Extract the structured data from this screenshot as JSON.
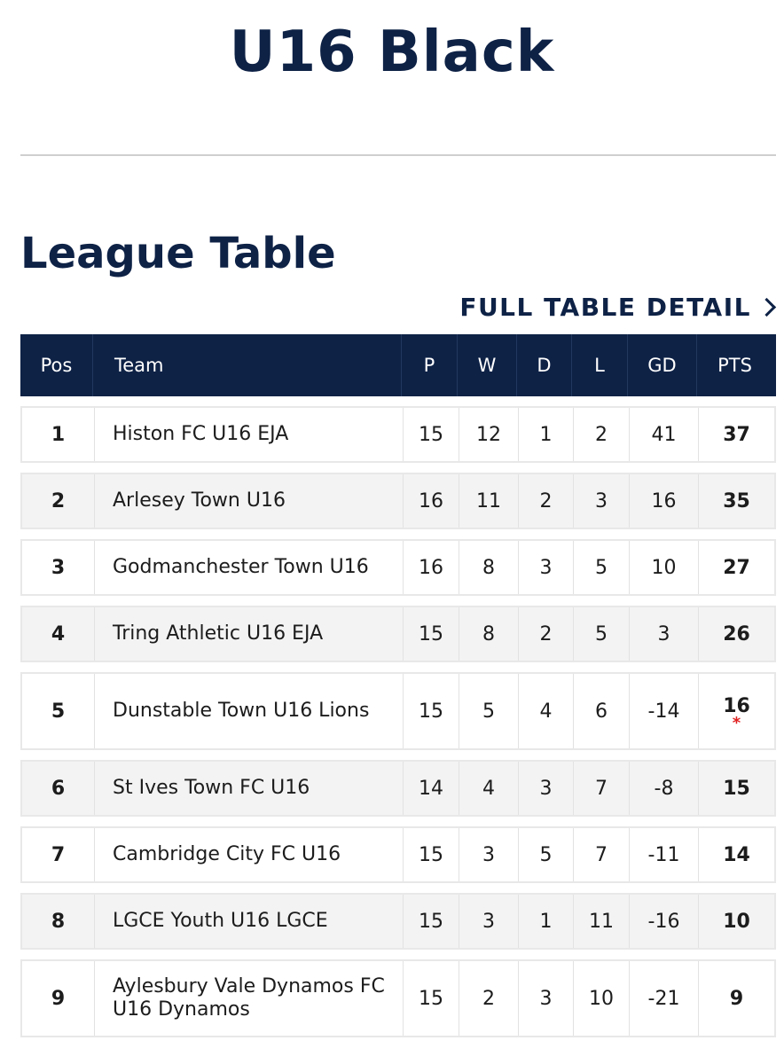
{
  "header": {
    "title": "U16 Black"
  },
  "section": {
    "title": "League Table",
    "link_label": "FULL TABLE DETAIL"
  },
  "table": {
    "columns": [
      "Pos",
      "Team",
      "P",
      "W",
      "D",
      "L",
      "GD",
      "PTS"
    ],
    "rows": [
      {
        "pos": "1",
        "team": "Histon FC U16 EJA",
        "p": "15",
        "w": "12",
        "d": "1",
        "l": "2",
        "gd": "41",
        "pts": "37",
        "note": ""
      },
      {
        "pos": "2",
        "team": "Arlesey Town U16",
        "p": "16",
        "w": "11",
        "d": "2",
        "l": "3",
        "gd": "16",
        "pts": "35",
        "note": ""
      },
      {
        "pos": "3",
        "team": "Godmanchester Town U16",
        "p": "16",
        "w": "8",
        "d": "3",
        "l": "5",
        "gd": "10",
        "pts": "27",
        "note": ""
      },
      {
        "pos": "4",
        "team": "Tring Athletic U16 EJA",
        "p": "15",
        "w": "8",
        "d": "2",
        "l": "5",
        "gd": "3",
        "pts": "26",
        "note": ""
      },
      {
        "pos": "5",
        "team": "Dunstable Town U16 Lions",
        "p": "15",
        "w": "5",
        "d": "4",
        "l": "6",
        "gd": "-14",
        "pts": "16",
        "note": "*"
      },
      {
        "pos": "6",
        "team": "St Ives Town FC U16",
        "p": "14",
        "w": "4",
        "d": "3",
        "l": "7",
        "gd": "-8",
        "pts": "15",
        "note": ""
      },
      {
        "pos": "7",
        "team": "Cambridge City FC U16",
        "p": "15",
        "w": "3",
        "d": "5",
        "l": "7",
        "gd": "-11",
        "pts": "14",
        "note": ""
      },
      {
        "pos": "8",
        "team": "LGCE Youth U16 LGCE",
        "p": "15",
        "w": "3",
        "d": "1",
        "l": "11",
        "gd": "-16",
        "pts": "10",
        "note": ""
      },
      {
        "pos": "9",
        "team": "Aylesbury Vale Dynamos FC U16 Dynamos",
        "p": "15",
        "w": "2",
        "d": "3",
        "l": "10",
        "gd": "-21",
        "pts": "9",
        "note": ""
      }
    ]
  },
  "colors": {
    "navy": "#0e2246",
    "note": "#e02020",
    "row_alt": "#f3f3f3"
  }
}
